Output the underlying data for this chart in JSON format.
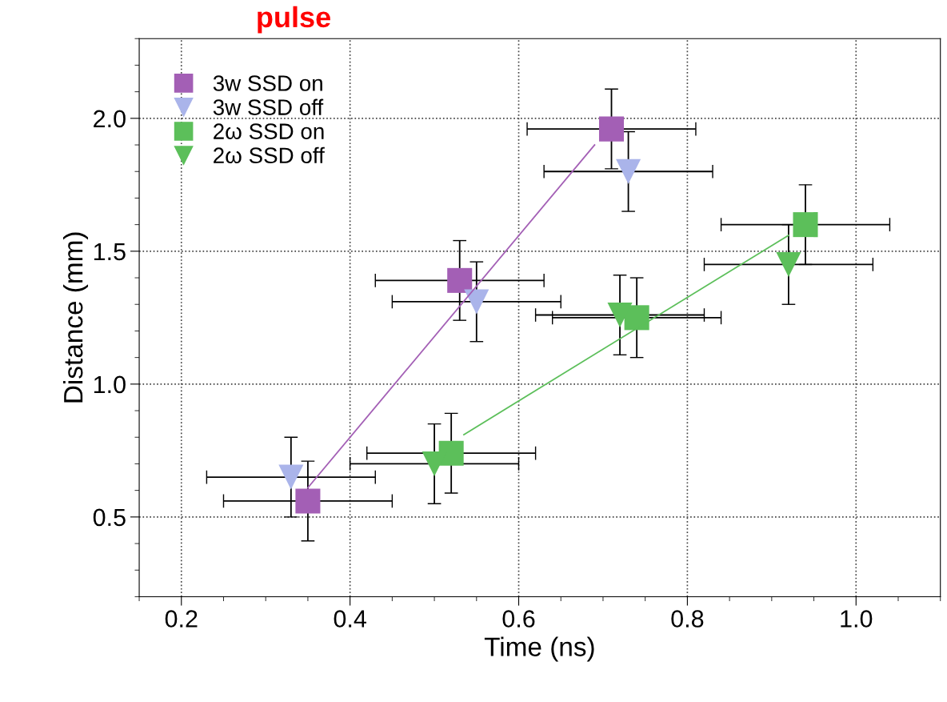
{
  "chart_data": {
    "type": "scatter",
    "xlabel": "Time (ns)",
    "ylabel": "Distance (mm)",
    "xlim": [
      0.15,
      1.1
    ],
    "ylim": [
      0.2,
      2.3
    ],
    "xticks": [
      0.2,
      0.4,
      0.6,
      0.8,
      {
        "value": 1,
        "label": "1.0"
      }
    ],
    "yticks": [
      0.5,
      {
        "value": 1,
        "label": "1.0"
      },
      1.5,
      {
        "value": 2,
        "label": "2.0"
      }
    ],
    "grid": true,
    "legend": "top left",
    "annotations": [
      "pulse"
    ],
    "series": [
      {
        "type": "line",
        "x": [
          0.35,
          0.69
        ],
        "values": [
          0.61,
          1.9
        ],
        "color": "#a35fb5",
        "marker": "none"
      },
      {
        "type": "line",
        "x": [
          0.535,
          0.92
        ],
        "values": [
          0.81,
          1.56
        ],
        "color": "#5cbf5a",
        "marker": "none"
      },
      {
        "name": "3w SSD on",
        "marker": "square",
        "color": "#a35fb5",
        "x": [
          0.35,
          0.53,
          0.71
        ],
        "values": [
          0.56,
          1.39,
          1.96
        ],
        "errors": [
          0.15,
          0.15,
          0.15
        ],
        "xerrors": [
          0.1,
          0.1,
          0.1
        ]
      },
      {
        "name": "3w SSD off",
        "marker": "triangle",
        "color": "#aab4ea",
        "x": [
          0.33,
          0.55,
          0.73
        ],
        "values": [
          0.65,
          1.31,
          1.8
        ],
        "errors": [
          0.15,
          0.15,
          0.15
        ],
        "xerrors": [
          0.1,
          0.1,
          0.1
        ]
      },
      {
        "name": "2ω SSD on",
        "marker": "square",
        "color": "#5cbf5a",
        "x": [
          0.52,
          0.74,
          0.94
        ],
        "values": [
          0.74,
          1.25,
          1.6
        ],
        "errors": [
          0.15,
          0.15,
          0.15
        ],
        "xerrors": [
          0.1,
          0.1,
          0.1
        ]
      },
      {
        "name": "2ω SSD off",
        "marker": "triangle",
        "color": "#5cbf5a",
        "x": [
          0.5,
          0.72,
          0.92
        ],
        "values": [
          0.7,
          1.26,
          1.45
        ],
        "errors": [
          0.15,
          0.15,
          0.15
        ],
        "xerrors": [
          0.1,
          0.1,
          0.1
        ]
      }
    ]
  }
}
